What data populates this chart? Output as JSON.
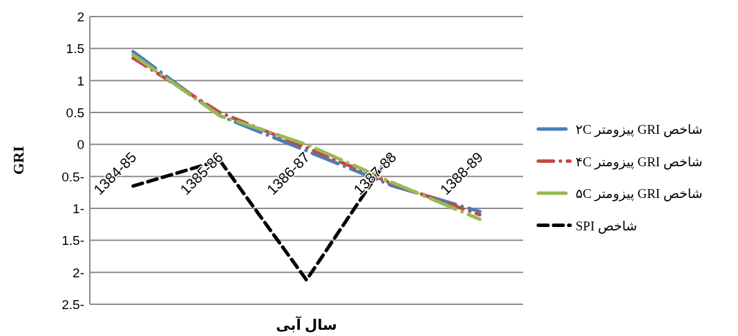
{
  "chart_data": {
    "type": "line",
    "xlabel": "سال آبی",
    "ylabel": "GRI",
    "categories": [
      "1384-85",
      "1385-86",
      "1386-87",
      "1387-88",
      "1388-89"
    ],
    "series": [
      {
        "name": "شاخص GRI پیزومتر ۲C",
        "color": "#4a7ebb",
        "line_style": "dashed",
        "values": [
          1.45,
          0.45,
          -0.1,
          -0.65,
          -1.05
        ]
      },
      {
        "name": "شاخص GRI پیزومتر ۴C",
        "color": "#be4b48",
        "line_style": "dashed",
        "values": [
          1.35,
          0.5,
          -0.05,
          -0.62,
          -1.1
        ]
      },
      {
        "name": "شاخص GRI پیزومتر ۵C",
        "color": "#98b954",
        "line_style": "dashed",
        "values": [
          1.4,
          0.45,
          0.0,
          -0.6,
          -1.17
        ]
      },
      {
        "name": "شاخص SPI",
        "color": "#000000",
        "line_style": "dotted",
        "values": [
          -0.65,
          -0.25,
          -2.12,
          -0.1,
          null
        ]
      }
    ],
    "ylim": [
      -2.5,
      2
    ],
    "yticks": [
      2,
      1.5,
      1,
      0.5,
      0,
      {
        "value": -0.5,
        "label": "0.5-"
      },
      {
        "value": -1,
        "label": "1-"
      },
      {
        "value": -1.5,
        "label": "1.5-"
      },
      {
        "value": -2,
        "label": "2-"
      },
      {
        "value": -2.5,
        "label": "2.5-"
      }
    ],
    "grid": "y",
    "legend": "right",
    "marker": "none"
  }
}
